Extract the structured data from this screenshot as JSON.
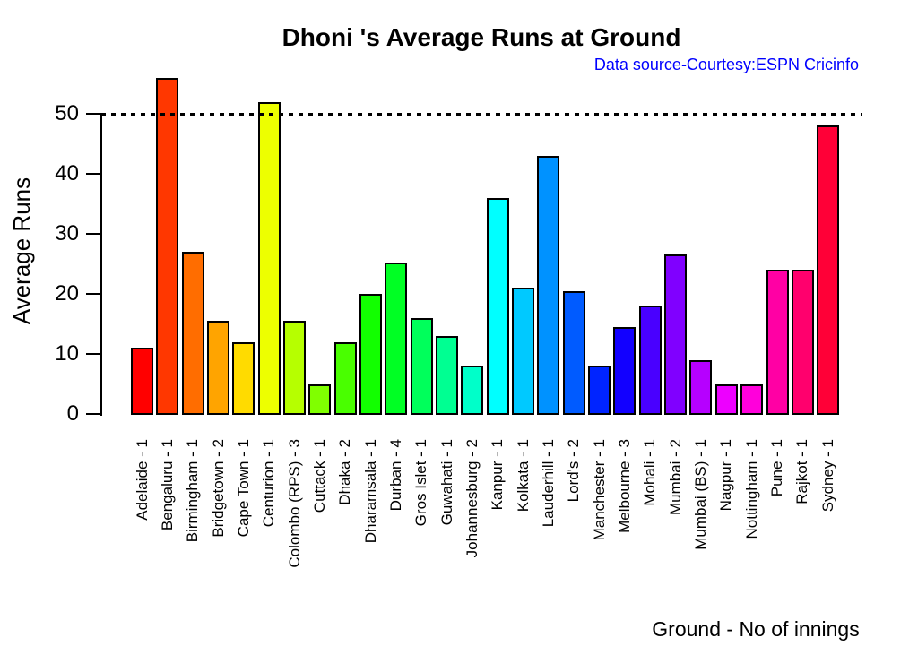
{
  "chart": {
    "background_color": "#FFFFFF",
    "text_color": "#000000",
    "subtitle_color": "#0000FF"
  },
  "chart_data": {
    "type": "bar",
    "title": "Dhoni 's Average Runs at Ground",
    "subtitle": "Data source-Courtesy:ESPN Cricinfo",
    "xlabel": "Ground - No of innings",
    "ylabel": "Average Runs",
    "ylim": [
      0,
      56
    ],
    "yticks": [
      0,
      10,
      20,
      30,
      40,
      50
    ],
    "reference_line_y": 50,
    "reference_line_style": "dotted",
    "grid": false,
    "legend_position": "none",
    "categories": [
      "Adelaide - 1",
      "Bengaluru - 1",
      "Birmingham - 1",
      "Bridgetown - 2",
      "Cape Town - 1",
      "Centurion - 1",
      "Colombo (RPS) - 3",
      "Cuttack - 1",
      "Dhaka - 2",
      "Dharamsala - 1",
      "Durban - 4",
      "Gros Islet - 1",
      "Guwahati - 1",
      "Johannesburg - 2",
      "Kanpur - 1",
      "Kolkata - 1",
      "Lauderhill - 1",
      "Lord's - 2",
      "Manchester - 1",
      "Melbourne - 3",
      "Mohali - 1",
      "Mumbai - 2",
      "Mumbai (BS) - 1",
      "Nagpur - 1",
      "Nottingham - 1",
      "Pune - 1",
      "Rajkot - 1",
      "Sydney - 1"
    ],
    "values": [
      11,
      56,
      27,
      15.5,
      12,
      52,
      15.5,
      5,
      12,
      20,
      25.25,
      16,
      13,
      8,
      36,
      21,
      43,
      20.5,
      8,
      14.5,
      18,
      26.5,
      9,
      5,
      5,
      24,
      24,
      48
    ],
    "bar_colors": [
      "#FF0000",
      "#FF3700",
      "#FF6D00",
      "#FFA400",
      "#FFDB00",
      "#EDFF00",
      "#B6FF00",
      "#80FF00",
      "#49FF00",
      "#12FF00",
      "#00FF24",
      "#00FF5B",
      "#00FF92",
      "#00FFC9",
      "#00FFFF",
      "#00C9FF",
      "#0092FF",
      "#005BFF",
      "#0024FF",
      "#1200FF",
      "#4900FF",
      "#8000FF",
      "#B600FF",
      "#ED00FF",
      "#FF00DB",
      "#FF00A4",
      "#FF006D",
      "#FF0037"
    ],
    "bar_border_color": "#000000"
  }
}
